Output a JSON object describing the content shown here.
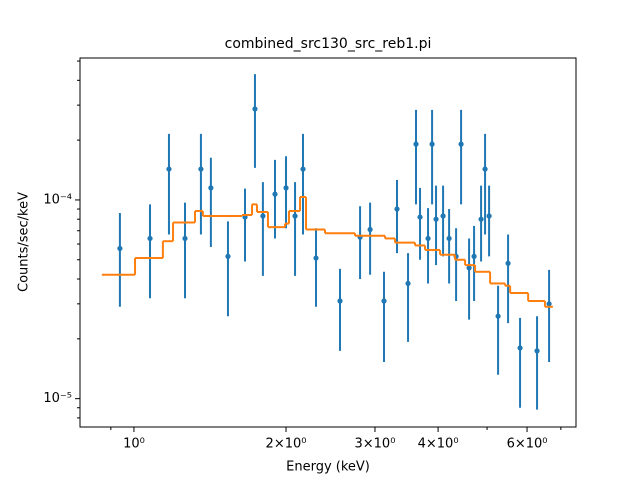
{
  "chart_data": {
    "type": "scatter",
    "title": "combined_src130_src_reb1.pi",
    "xlabel": "Energy (keV)",
    "ylabel": "Counts/sec/keV",
    "xscale": "log",
    "yscale": "log",
    "xlim": [
      0.782,
      7.5
    ],
    "ylim": [
      7.2e-06,
      0.000518
    ],
    "xticks": [
      {
        "value": 1,
        "label": "10⁰"
      },
      {
        "value": 2,
        "label": "2×10⁰"
      },
      {
        "value": 3,
        "label": "3×10⁰"
      },
      {
        "value": 4,
        "label": "4×10⁰"
      },
      {
        "value": 6,
        "label": "6×10⁰"
      }
    ],
    "xminor": [
      0.9,
      5,
      7
    ],
    "yticks": [
      {
        "value": 1e-05,
        "label": "10⁻⁵"
      },
      {
        "value": 0.0001,
        "label": "10⁻⁴"
      }
    ],
    "yminor": [
      8e-06,
      9e-06,
      2e-05,
      3e-05,
      4e-05,
      5e-05,
      6e-05,
      7e-05,
      8e-05,
      9e-05,
      0.0002,
      0.0003,
      0.0004,
      0.0005
    ],
    "series": [
      {
        "color": "#1f77b4",
        "x": [
          0.938,
          1.076,
          1.173,
          1.262,
          1.357,
          1.42,
          1.535,
          1.659,
          1.736,
          1.8,
          1.902,
          2.0,
          2.084,
          2.161,
          2.293,
          2.558,
          2.803,
          2.934,
          3.126,
          3.317,
          3.488,
          3.617,
          3.684,
          3.821,
          3.892,
          3.963,
          4.092,
          4.206,
          4.342,
          4.442,
          4.607,
          4.713,
          4.866,
          4.955,
          5.047,
          5.258,
          5.503,
          5.812,
          6.28,
          6.634
        ],
        "values": [
          5.7e-05,
          6.4e-05,
          0.000143,
          6.4e-05,
          0.000143,
          0.000115,
          5.2e-05,
          8.2e-05,
          0.000287,
          8.3e-05,
          0.000107,
          0.000115,
          8.3e-05,
          0.000143,
          5.1e-05,
          3.1e-05,
          6.5e-05,
          7.1e-05,
          3.1e-05,
          9e-05,
          3.8e-05,
          0.000191,
          8.2e-05,
          6.4e-05,
          0.000191,
          8e-05,
          8.3e-05,
          6.4e-05,
          5.2e-05,
          0.000191,
          4.55e-05,
          5.2e-05,
          8e-05,
          0.000143,
          8.3e-05,
          2.6e-05,
          4.8e-05,
          1.8e-05,
          1.74e-05,
          3e-05
        ],
        "lower": [
          2.9e-05,
          3.2e-05,
          6.7e-05,
          3.2e-05,
          6.7e-05,
          5.8e-05,
          2.6e-05,
          4.9e-05,
          0.000145,
          4.15e-05,
          6.4e-05,
          7.2e-05,
          4.15e-05,
          6.7e-05,
          2.9e-05,
          1.74e-05,
          4e-05,
          4.2e-05,
          1.53e-05,
          5.4e-05,
          1.93e-05,
          9.5e-05,
          5e-05,
          3.8e-05,
          9.5e-05,
          4.7e-05,
          5.2e-05,
          3.8e-05,
          3.1e-05,
          9.5e-05,
          2.5e-05,
          3.1e-05,
          4.9e-05,
          6.7e-05,
          5.2e-05,
          1.32e-05,
          2.4e-05,
          9e-06,
          8.8e-06,
          1.53e-05
        ],
        "upper": [
          8.6e-05,
          9.5e-05,
          0.000215,
          9.7e-05,
          0.000215,
          0.000163,
          7.8e-05,
          0.000114,
          0.00043,
          0.000123,
          0.000159,
          0.000166,
          0.000123,
          0.000215,
          7.2e-05,
          4.5e-05,
          9.3e-05,
          9.7e-05,
          4.35e-05,
          0.000126,
          5.4e-05,
          0.000284,
          0.000115,
          9.1e-05,
          0.000284,
          0.000118,
          0.000118,
          9e-05,
          7.2e-05,
          0.000284,
          6.4e-05,
          7.4e-05,
          0.000118,
          0.000215,
          0.000118,
          3.7e-05,
          6.7e-05,
          2.55e-05,
          2.6e-05,
          4.45e-05
        ]
      },
      {
        "type": "step",
        "color": "#ff7f0e",
        "bins": [
          0.864,
          1.005,
          1.141,
          1.195,
          1.321,
          1.369,
          1.636,
          1.713,
          1.752,
          1.842,
          1.991,
          2.027,
          2.132,
          2.191,
          2.389,
          2.739,
          3.141,
          3.287,
          3.601,
          3.769,
          4.036,
          4.322,
          4.524,
          4.734,
          5.07,
          5.43,
          5.555,
          6.03,
          6.51,
          6.75
        ],
        "values": [
          4.2e-05,
          5.1e-05,
          6.2e-05,
          7.7e-05,
          8.8e-05,
          8.3e-05,
          8.4e-05,
          9.5e-05,
          8.7e-05,
          7.3e-05,
          7.6e-05,
          8.8e-05,
          0.0001035,
          7.1e-05,
          6.8e-05,
          6.6e-05,
          6.4e-05,
          6.1e-05,
          5.9e-05,
          5.6e-05,
          5.3e-05,
          5e-05,
          4.7e-05,
          4.35e-05,
          3.8e-05,
          3.7e-05,
          3.4e-05,
          3.1e-05,
          2.9e-05
        ]
      }
    ]
  }
}
